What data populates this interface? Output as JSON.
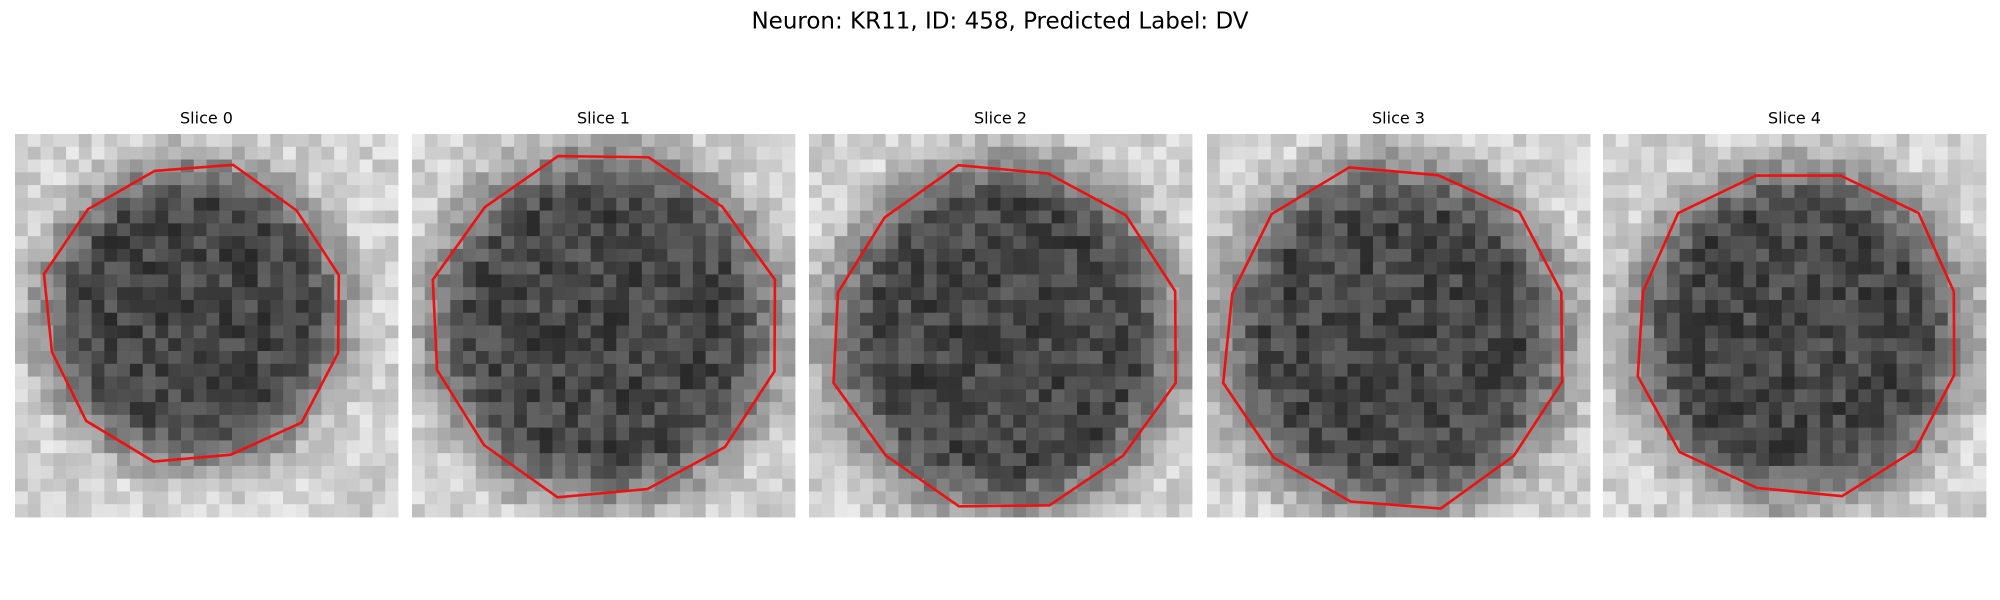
{
  "title": "Neuron: KR11, ID: 458, Predicted Label: DV",
  "panels": [
    {
      "title": "Slice 0"
    },
    {
      "title": "Slice 1"
    },
    {
      "title": "Slice 2"
    },
    {
      "title": "Slice 3"
    },
    {
      "title": "Slice 4"
    }
  ]
}
